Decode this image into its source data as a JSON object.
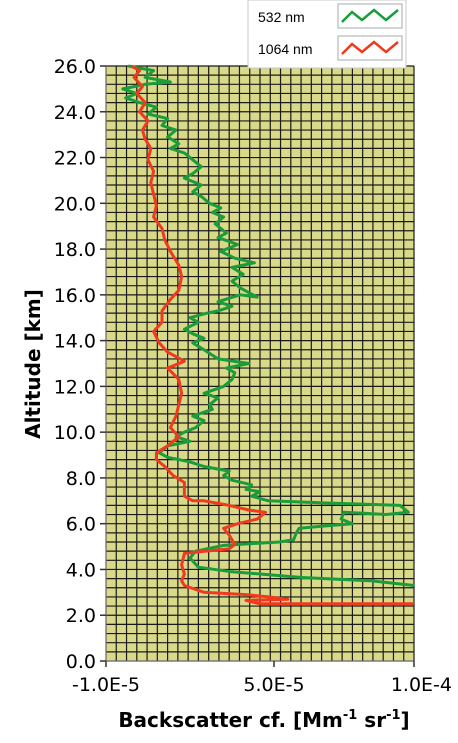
{
  "chart_data": {
    "type": "line",
    "title": "",
    "xlabel": "Backscatter cf. [Mm",
    "xlabel_sup1": "-1",
    "xlabel_mid": " sr",
    "xlabel_sup2": "-1",
    "xlabel_end": "]",
    "ylabel": "Altitude [km]",
    "xlim": [
      -1e-05,
      0.0001
    ],
    "ylim": [
      0,
      26
    ],
    "x_ticks": [
      -1e-05,
      5e-05,
      0.0001
    ],
    "x_tick_labels": [
      "-1.0E-5",
      "5.0E-5",
      "1.0E-4"
    ],
    "y_ticks": [
      0,
      2,
      4,
      6,
      8,
      10,
      12,
      14,
      16,
      18,
      20,
      22,
      24,
      26
    ],
    "y_tick_labels": [
      "0.0",
      "2.0",
      "4.0",
      "6.0",
      "8.0",
      "10.0",
      "12.0",
      "14.0",
      "16.0",
      "18.0",
      "20.0",
      "22.0",
      "24.0",
      "26.0"
    ],
    "grid": true,
    "legend_position": "top-right",
    "series": [
      {
        "name": "532 nm",
        "color": "#1a9c3a",
        "points": [
          [
            0.0001,
            3.3
          ],
          [
            8.5e-05,
            3.5
          ],
          [
            6e-05,
            3.65
          ],
          [
            4.5e-05,
            3.8
          ],
          [
            3.5e-05,
            3.9
          ],
          [
            2.3e-05,
            4.1
          ],
          [
            2e-05,
            4.5
          ],
          [
            2.2e-05,
            4.8
          ],
          [
            3.2e-05,
            5.05
          ],
          [
            4.5e-05,
            5.15
          ],
          [
            5.2e-05,
            5.2
          ],
          [
            5.7e-05,
            5.3
          ],
          [
            5.8e-05,
            5.6
          ],
          [
            5.9e-05,
            5.8
          ],
          [
            6.8e-05,
            5.9
          ],
          [
            7.8e-05,
            6.0
          ],
          [
            7.4e-05,
            6.2
          ],
          [
            7.5e-05,
            6.5
          ],
          [
            9e-05,
            6.4
          ],
          [
            9.8e-05,
            6.5
          ],
          [
            9.5e-05,
            6.8
          ],
          [
            7e-05,
            6.9
          ],
          [
            4.8e-05,
            7.0
          ],
          [
            4.2e-05,
            7.2
          ],
          [
            4.5e-05,
            7.4
          ],
          [
            4e-05,
            7.5
          ],
          [
            4.2e-05,
            7.7
          ],
          [
            3.5e-05,
            7.9
          ],
          [
            3.2e-05,
            8.1
          ],
          [
            3.4e-05,
            8.3
          ],
          [
            2.5e-05,
            8.5
          ],
          [
            2e-05,
            8.7
          ],
          [
            1.2e-05,
            8.9
          ],
          [
            9e-06,
            9.1
          ],
          [
            1.2e-05,
            9.4
          ],
          [
            2e-05,
            9.6
          ],
          [
            1.5e-05,
            9.8
          ],
          [
            1.8e-05,
            10.0
          ],
          [
            2.2e-05,
            10.2
          ],
          [
            2.5e-05,
            10.5
          ],
          [
            2.1e-05,
            10.7
          ],
          [
            2.8e-05,
            11.0
          ],
          [
            2.7e-05,
            11.2
          ],
          [
            3e-05,
            11.5
          ],
          [
            2.5e-05,
            11.7
          ],
          [
            3.2e-05,
            12.0
          ],
          [
            3.5e-05,
            12.3
          ],
          [
            3.6e-05,
            12.6
          ],
          [
            3.3e-05,
            12.8
          ],
          [
            4.1e-05,
            13.0
          ],
          [
            3e-05,
            13.2
          ],
          [
            2.5e-05,
            13.6
          ],
          [
            2.1e-05,
            13.9
          ],
          [
            2.5e-05,
            14.1
          ],
          [
            2.1e-05,
            14.3
          ],
          [
            1.8e-05,
            14.5
          ],
          [
            2.3e-05,
            14.8
          ],
          [
            2e-05,
            15.0
          ],
          [
            2.6e-05,
            15.2
          ],
          [
            3e-05,
            15.3
          ],
          [
            3.5e-05,
            15.5
          ],
          [
            3e-05,
            15.7
          ],
          [
            3.8e-05,
            16.0
          ],
          [
            4.4e-05,
            15.9
          ],
          [
            3.8e-05,
            16.3
          ],
          [
            3.5e-05,
            16.6
          ],
          [
            3.9e-05,
            16.9
          ],
          [
            3.5e-05,
            17.2
          ],
          [
            4.3e-05,
            17.4
          ],
          [
            3.6e-05,
            17.6
          ],
          [
            3.1e-05,
            17.9
          ],
          [
            3.7e-05,
            18.2
          ],
          [
            3e-05,
            18.5
          ],
          [
            3.3e-05,
            18.7
          ],
          [
            2.9e-05,
            19.1
          ],
          [
            3.2e-05,
            19.4
          ],
          [
            2.8e-05,
            19.6
          ],
          [
            3.1e-05,
            19.8
          ],
          [
            2.7e-05,
            20.0
          ],
          [
            2.4e-05,
            20.3
          ],
          [
            2.1e-05,
            20.5
          ],
          [
            2.4e-05,
            20.8
          ],
          [
            1.8e-05,
            21.1
          ],
          [
            2.1e-05,
            21.3
          ],
          [
            2.4e-05,
            21.6
          ],
          [
            2.1e-05,
            21.9
          ],
          [
            1.8e-05,
            22.2
          ],
          [
            1.3e-05,
            22.4
          ],
          [
            1.6e-05,
            22.6
          ],
          [
            1.2e-05,
            22.9
          ],
          [
            1.5e-05,
            23.2
          ],
          [
            1e-05,
            23.4
          ],
          [
            1.2e-05,
            23.7
          ],
          [
            5e-06,
            23.9
          ],
          [
            8e-06,
            24.2
          ],
          [
            2e-06,
            24.4
          ],
          [
            -3e-06,
            24.6
          ],
          [
            1e-06,
            24.8
          ],
          [
            -4e-06,
            25.0
          ],
          [
            4e-06,
            25.2
          ],
          [
            1.3e-05,
            25.3
          ],
          [
            4e-06,
            25.5
          ],
          [
            7e-06,
            25.8
          ],
          [
            -2e-06,
            26.0
          ]
        ]
      },
      {
        "name": "1064 nm",
        "color": "#f03a1e",
        "points": [
          [
            0.0001,
            2.5
          ],
          [
            4.5e-05,
            2.5
          ],
          [
            4e-05,
            2.65
          ],
          [
            5.5e-05,
            2.7
          ],
          [
            4.8e-05,
            2.8
          ],
          [
            4e-05,
            2.9
          ],
          [
            2.5e-05,
            3.0
          ],
          [
            1.8e-05,
            3.3
          ],
          [
            1.7e-05,
            3.5
          ],
          [
            1.8e-05,
            3.8
          ],
          [
            1.7e-05,
            4.2
          ],
          [
            1.8e-05,
            4.7
          ],
          [
            2.5e-05,
            4.8
          ],
          [
            3.4e-05,
            4.9
          ],
          [
            3.6e-05,
            5.1
          ],
          [
            3.4e-05,
            5.5
          ],
          [
            3.2e-05,
            5.8
          ],
          [
            3.7e-05,
            6.0
          ],
          [
            4.4e-05,
            6.2
          ],
          [
            4.7e-05,
            6.5
          ],
          [
            4.1e-05,
            6.6
          ],
          [
            3.4e-05,
            6.8
          ],
          [
            2.5e-05,
            7.0
          ],
          [
            2.1e-05,
            7.0
          ],
          [
            1.8e-05,
            7.2
          ],
          [
            1.8e-05,
            7.8
          ],
          [
            1.4e-05,
            8.1
          ],
          [
            1.1e-05,
            8.5
          ],
          [
            8e-06,
            8.8
          ],
          [
            8e-06,
            9.1
          ],
          [
            1.2e-05,
            9.4
          ],
          [
            1.6e-05,
            9.8
          ],
          [
            1.3e-05,
            10.2
          ],
          [
            1.5e-05,
            10.7
          ],
          [
            1.6e-05,
            11.2
          ],
          [
            1.7e-05,
            11.7
          ],
          [
            1.6e-05,
            12.3
          ],
          [
            1.2e-05,
            12.8
          ],
          [
            1.8e-05,
            13.1
          ],
          [
            1.2e-05,
            13.5
          ],
          [
            9e-06,
            13.9
          ],
          [
            7e-06,
            14.4
          ],
          [
            1e-05,
            14.8
          ],
          [
            1e-05,
            15.3
          ],
          [
            1.3e-05,
            15.8
          ],
          [
            1.6e-05,
            16.2
          ],
          [
            1.7e-05,
            16.8
          ],
          [
            1.6e-05,
            17.3
          ],
          [
            1.3e-05,
            17.9
          ],
          [
            1.1e-05,
            18.4
          ],
          [
            1e-05,
            18.9
          ],
          [
            7e-06,
            19.4
          ],
          [
            8e-06,
            19.9
          ],
          [
            7e-06,
            20.4
          ],
          [
            6e-06,
            20.9
          ],
          [
            7e-06,
            21.4
          ],
          [
            5e-06,
            21.9
          ],
          [
            6e-06,
            22.4
          ],
          [
            4e-06,
            22.8
          ],
          [
            3e-06,
            23.2
          ],
          [
            5e-06,
            23.6
          ],
          [
            2e-06,
            24.0
          ],
          [
            4e-06,
            24.4
          ],
          [
            1e-06,
            24.8
          ],
          [
            3e-06,
            25.1
          ],
          [
            0.0,
            25.5
          ],
          [
            2e-06,
            25.8
          ],
          [
            -1e-06,
            26.0
          ]
        ]
      }
    ]
  }
}
